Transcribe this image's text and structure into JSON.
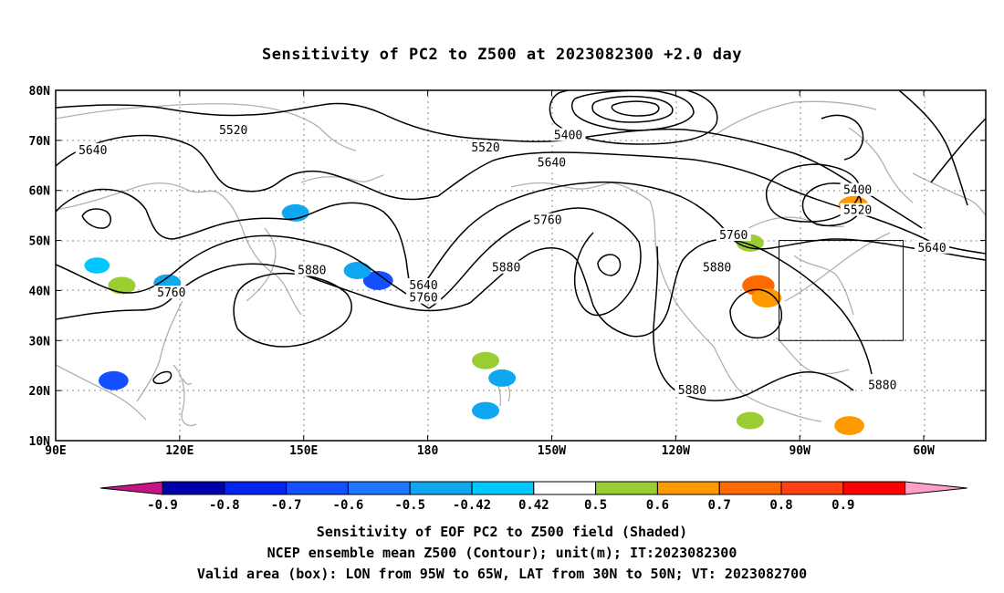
{
  "title": "Sensitivity of PC2 to Z500 at 2023082300 +2.0 day",
  "lat_labels": [
    "80N",
    "70N",
    "60N",
    "50N",
    "40N",
    "30N",
    "20N",
    "10N"
  ],
  "lon_labels": [
    "90E",
    "120E",
    "150E",
    "180",
    "150W",
    "120W",
    "90W",
    "60W"
  ],
  "contour_labels": [
    {
      "text": "5520",
      "lon": 133,
      "lat": 72.0
    },
    {
      "text": "5640",
      "lon": 99,
      "lat": 68.0
    },
    {
      "text": "5520",
      "lon": 194,
      "lat": 68.5
    },
    {
      "text": "5400",
      "lon": 214,
      "lat": 71.0
    },
    {
      "text": "5640",
      "lon": 210,
      "lat": 65.5
    },
    {
      "text": "5760",
      "lon": 209,
      "lat": 54.0
    },
    {
      "text": "5760",
      "lon": 254,
      "lat": 51.0
    },
    {
      "text": "5880",
      "lon": 152,
      "lat": 44.0
    },
    {
      "text": "5880",
      "lon": 199,
      "lat": 44.5
    },
    {
      "text": "5880",
      "lon": 250,
      "lat": 44.5
    },
    {
      "text": "5640",
      "lon": 179,
      "lat": 41.0
    },
    {
      "text": "5760",
      "lon": 179,
      "lat": 38.5
    },
    {
      "text": "5760",
      "lon": 118,
      "lat": 39.5
    },
    {
      "text": "5400",
      "lon": 284,
      "lat": 60.0
    },
    {
      "text": "5520",
      "lon": 284,
      "lat": 56.0
    },
    {
      "text": "5640",
      "lon": 302,
      "lat": 48.5
    },
    {
      "text": "5880",
      "lon": 244,
      "lat": 20.0
    },
    {
      "text": "5880",
      "lon": 290,
      "lat": 21.0
    }
  ],
  "valid_box": {
    "lon_min": 265,
    "lon_max": 295,
    "lat_min": 30,
    "lat_max": 50
  },
  "colorbar": {
    "labels": [
      "-0.9",
      "-0.8",
      "-0.7",
      "-0.6",
      "-0.5",
      "-0.42",
      "0.42",
      "0.5",
      "0.6",
      "0.7",
      "0.8",
      "0.9"
    ],
    "colors": [
      "#c71585",
      "#0000aa",
      "#0022ee",
      "#1450ff",
      "#1e78ff",
      "#0fa8f0",
      "#00c8ff",
      "#ffffff",
      "#9acd32",
      "#ff9900",
      "#ff6a00",
      "#ff4010",
      "#ff0000",
      "#ffa0c8"
    ]
  },
  "sensitivity_blobs": [
    {
      "lon": 148,
      "lat": 55.5,
      "value": -0.5
    },
    {
      "lon": 168,
      "lat": 42.0,
      "value": -0.6
    },
    {
      "lon": 163,
      "lat": 44.0,
      "value": -0.5
    },
    {
      "lon": 117,
      "lat": 41.5,
      "value": -0.5
    },
    {
      "lon": 104,
      "lat": 22.0,
      "value": -0.6
    },
    {
      "lon": 100,
      "lat": 45.0,
      "value": -0.42
    },
    {
      "lon": 198,
      "lat": 22.5,
      "value": -0.5
    },
    {
      "lon": 194,
      "lat": 16.0,
      "value": -0.5
    },
    {
      "lon": 260,
      "lat": 41.0,
      "value": 0.7
    },
    {
      "lon": 262,
      "lat": 38.5,
      "value": 0.6
    },
    {
      "lon": 258,
      "lat": 49.5,
      "value": 0.5
    },
    {
      "lon": 283,
      "lat": 57.0,
      "value": 0.6
    },
    {
      "lon": 282,
      "lat": 13.0,
      "value": 0.6
    },
    {
      "lon": 258,
      "lat": 14.0,
      "value": 0.5
    },
    {
      "lon": 106,
      "lat": 41.0,
      "value": 0.5
    },
    {
      "lon": 194,
      "lat": 26.0,
      "value": 0.5
    }
  ],
  "captions": [
    "Sensitivity of EOF PC2 to Z500 field (Shaded)",
    "NCEP ensemble mean Z500 (Contour); unit(m); IT:2023082300",
    "Valid area (box): LON from 95W to 65W, LAT from 30N to 50N; VT: 2023082700"
  ]
}
